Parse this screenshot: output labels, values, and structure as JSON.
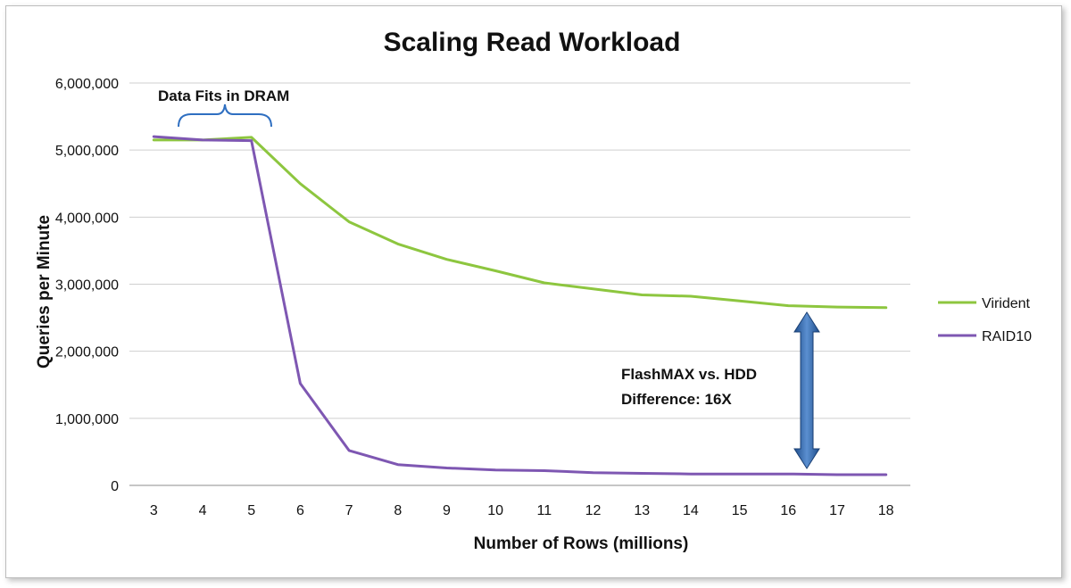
{
  "chart_data": {
    "type": "line",
    "title": "Scaling Read Workload",
    "xlabel": "Number of Rows (millions)",
    "ylabel": "Queries per Minute",
    "x": [
      3,
      4,
      5,
      6,
      7,
      8,
      9,
      10,
      11,
      12,
      13,
      14,
      15,
      16,
      17,
      18
    ],
    "ylim": [
      0,
      6000000
    ],
    "yticks": [
      "0",
      "1,000,000",
      "2,000,000",
      "3,000,000",
      "4,000,000",
      "5,000,000",
      "6,000,000"
    ],
    "grid": true,
    "legend_position": "right",
    "series": [
      {
        "name": "Virident",
        "color": "#8dc63f",
        "values": [
          5150000,
          5150000,
          5190000,
          4500000,
          3930000,
          3600000,
          3370000,
          3200000,
          3020000,
          2930000,
          2840000,
          2820000,
          2750000,
          2680000,
          2660000,
          2650000
        ]
      },
      {
        "name": "RAID10",
        "color": "#7e57b2",
        "values": [
          5200000,
          5150000,
          5140000,
          1520000,
          520000,
          310000,
          260000,
          230000,
          220000,
          190000,
          180000,
          170000,
          170000,
          170000,
          160000,
          160000
        ]
      }
    ],
    "annotations": {
      "bracket_label": "Data Fits in DRAM",
      "arrow_label_line1": "FlashMAX vs. HDD",
      "arrow_label_line2": "Difference: 16X"
    }
  }
}
